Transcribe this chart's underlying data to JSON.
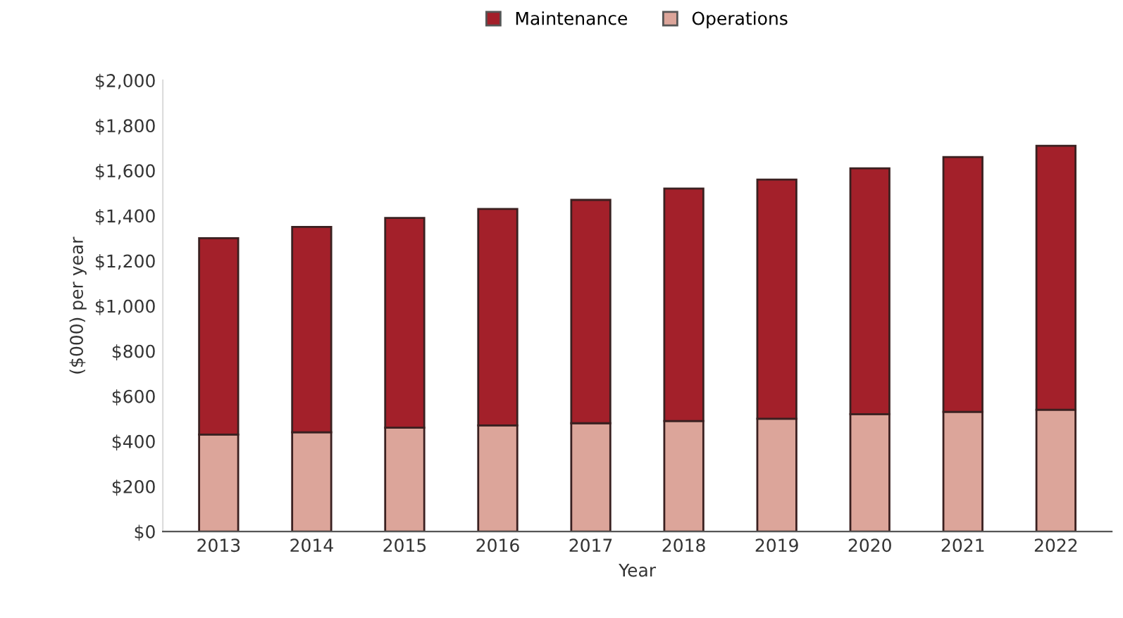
{
  "chart_data": {
    "type": "bar",
    "stacked": true,
    "xlabel": "Year",
    "ylabel": "($000) per year",
    "categories": [
      "2013",
      "2014",
      "2015",
      "2016",
      "2017",
      "2018",
      "2019",
      "2020",
      "2021",
      "2022"
    ],
    "series": [
      {
        "name": "Operations",
        "color": "#dca59a",
        "values": [
          430,
          440,
          460,
          470,
          480,
          490,
          500,
          520,
          530,
          540
        ]
      },
      {
        "name": "Maintenance",
        "color": "#a3202a",
        "values": [
          870,
          910,
          930,
          960,
          990,
          1030,
          1060,
          1090,
          1130,
          1170
        ]
      }
    ],
    "ylim": [
      0,
      2000
    ],
    "yticks": [
      {
        "value": 0,
        "label": "$0"
      },
      {
        "value": 200,
        "label": "$200"
      },
      {
        "value": 400,
        "label": "$400"
      },
      {
        "value": 600,
        "label": "$600"
      },
      {
        "value": 800,
        "label": "$800"
      },
      {
        "value": 1000,
        "label": "$1,000"
      },
      {
        "value": 1200,
        "label": "$1,200"
      },
      {
        "value": 1400,
        "label": "$1,400"
      },
      {
        "value": 1600,
        "label": "$1,600"
      },
      {
        "value": 1800,
        "label": "$1,800"
      },
      {
        "value": 2000,
        "label": "$2,000"
      }
    ],
    "grid": false,
    "legend": "top"
  }
}
